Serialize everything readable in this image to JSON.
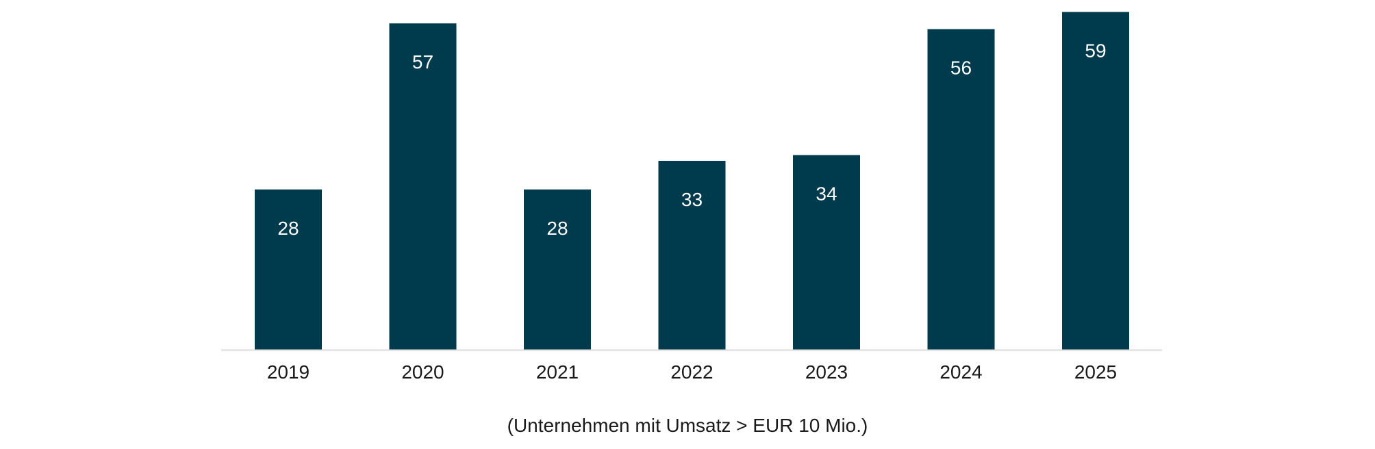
{
  "chart_data": {
    "type": "bar",
    "categories": [
      "2019",
      "2020",
      "2021",
      "2022",
      "2023",
      "2024",
      "2025"
    ],
    "values": [
      28,
      57,
      28,
      33,
      34,
      56,
      59
    ],
    "title": "",
    "xlabel": "(Unternehmen mit Umsatz > EUR 10 Mio.)",
    "ylabel": "",
    "ylim": [
      0,
      60
    ],
    "grid": false,
    "data_labels": "inside-top",
    "colors": {
      "bar": "#003A4D",
      "axis": "#D9D9D9",
      "label_on_bar": "#FFFFFF",
      "text": "#1A1A1A"
    }
  }
}
